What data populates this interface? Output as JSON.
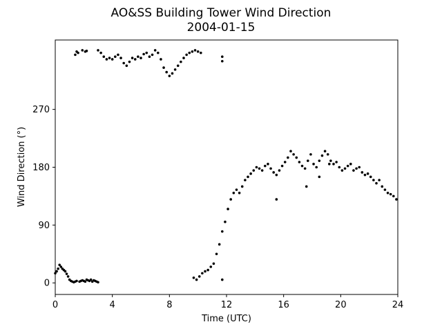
{
  "chart_data": {
    "type": "scatter",
    "title": "AO&SS Building Tower Wind Direction",
    "subtitle": "2004-01-15",
    "xlabel": "Time (UTC)",
    "ylabel": "Wind Direction (°)",
    "xlim": [
      0,
      24
    ],
    "ylim": [
      -18,
      378
    ],
    "xticks": [
      0,
      4,
      8,
      12,
      16,
      20,
      24
    ],
    "yticks": [
      0,
      90,
      180,
      270
    ],
    "grid": false,
    "marker_color": "#000000",
    "series": [
      {
        "x": [
          0.0,
          0.1,
          0.2,
          0.3,
          0.4,
          0.5,
          0.6,
          0.7,
          0.8,
          0.9,
          1.0,
          1.1,
          1.2,
          1.3,
          1.4,
          1.5,
          1.7,
          1.8,
          1.9,
          2.0,
          2.1,
          2.2,
          2.3,
          2.4,
          2.5,
          2.6,
          2.7,
          2.8,
          2.9,
          3.0,
          1.4,
          1.5,
          1.6,
          1.9,
          2.1,
          2.2,
          3.0,
          3.2,
          3.4,
          3.6,
          3.8,
          4.0,
          4.2,
          4.4,
          4.6,
          4.8,
          5.0,
          5.2,
          5.4,
          5.6,
          5.8,
          6.0,
          6.2,
          6.4,
          6.6,
          6.8,
          7.0,
          7.2,
          7.4,
          7.6,
          7.8,
          8.0,
          8.2,
          8.4,
          8.6,
          8.8,
          9.0,
          9.2,
          9.4,
          9.6,
          9.8,
          10.0,
          10.2,
          11.7,
          11.7,
          9.7,
          9.9,
          10.1,
          10.3,
          10.5,
          10.7,
          10.9,
          11.1,
          11.3,
          11.5,
          11.7,
          11.9,
          12.1,
          12.3,
          12.5,
          12.7,
          12.9,
          13.1,
          13.3,
          13.5,
          13.7,
          13.9,
          14.1,
          14.3,
          14.5,
          14.7,
          14.9,
          15.1,
          15.3,
          15.5,
          15.7,
          15.9,
          16.1,
          16.3,
          16.5,
          16.7,
          16.9,
          17.1,
          17.3,
          17.5,
          17.7,
          17.9,
          18.1,
          18.3,
          18.5,
          18.7,
          18.9,
          19.1,
          19.3,
          19.5,
          19.7,
          19.9,
          20.1,
          20.3,
          20.5,
          20.7,
          20.9,
          21.1,
          21.3,
          21.5,
          21.7,
          21.9,
          22.1,
          22.3,
          22.5,
          22.7,
          22.9,
          23.1,
          23.3,
          23.5,
          23.7,
          23.9,
          11.7,
          15.5,
          17.6,
          18.5,
          19.2
        ],
        "y": [
          15,
          18,
          22,
          28,
          25,
          22,
          20,
          18,
          14,
          10,
          5,
          3,
          2,
          1,
          2,
          3,
          2,
          3,
          4,
          3,
          2,
          5,
          4,
          3,
          5,
          2,
          4,
          3,
          2,
          1,
          355,
          360,
          358,
          362,
          360,
          361,
          362,
          358,
          352,
          348,
          350,
          348,
          352,
          355,
          350,
          342,
          338,
          344,
          350,
          348,
          352,
          350,
          356,
          358,
          352,
          355,
          362,
          358,
          348,
          335,
          328,
          322,
          326,
          332,
          338,
          344,
          350,
          355,
          358,
          360,
          362,
          360,
          358,
          352,
          345,
          8,
          5,
          10,
          15,
          18,
          20,
          25,
          30,
          45,
          60,
          80,
          95,
          115,
          130,
          140,
          145,
          140,
          150,
          160,
          165,
          170,
          175,
          180,
          178,
          175,
          182,
          185,
          178,
          172,
          168,
          175,
          182,
          188,
          195,
          205,
          200,
          195,
          188,
          182,
          178,
          190,
          200,
          185,
          180,
          190,
          198,
          205,
          200,
          190,
          185,
          188,
          180,
          175,
          178,
          182,
          185,
          175,
          178,
          180,
          172,
          168,
          170,
          165,
          160,
          155,
          160,
          150,
          145,
          140,
          138,
          135,
          130,
          5,
          130,
          150,
          165,
          185
        ]
      }
    ]
  }
}
